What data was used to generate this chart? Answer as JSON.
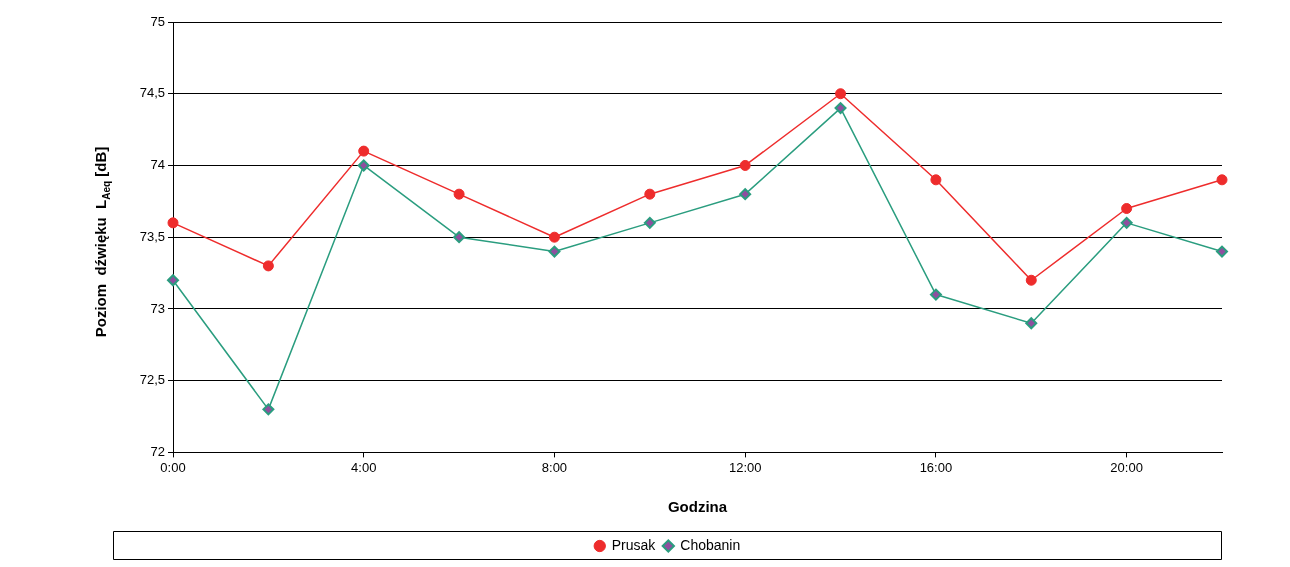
{
  "chart_data": {
    "type": "line",
    "xlabel": "Godzina",
    "ylabel": "Poziom  dźwięku  L$_{Aeq}$ [dB]",
    "x": [
      0,
      2,
      4,
      6,
      8,
      10,
      12,
      14,
      16,
      18,
      20,
      22
    ],
    "xlim": [
      0,
      22
    ],
    "xticks": [
      {
        "value": 0,
        "label": "0:00"
      },
      {
        "value": 4,
        "label": "4:00"
      },
      {
        "value": 8,
        "label": "8:00"
      },
      {
        "value": 12,
        "label": "12:00"
      },
      {
        "value": 16,
        "label": "16:00"
      },
      {
        "value": 20,
        "label": "20:00"
      }
    ],
    "ylim": [
      72,
      75
    ],
    "yticks": [
      72,
      {
        "value": 72.5,
        "label": "72,5"
      },
      73,
      {
        "value": 73.5,
        "label": "73,5"
      },
      74,
      {
        "value": 74.5,
        "label": "74,5"
      },
      75
    ],
    "grid": "y",
    "legend": "bottom",
    "series": [
      {
        "name": "Prusak",
        "color": "#ee2c2c",
        "marker": "circle",
        "values": [
          73.6,
          73.3,
          74.1,
          73.8,
          73.5,
          73.8,
          74.0,
          74.5,
          73.9,
          73.2,
          73.7,
          73.9
        ]
      },
      {
        "name": "Chobanin",
        "color": "#2a9d7f",
        "marker": "diamond",
        "values": [
          73.2,
          72.3,
          74.0,
          73.5,
          73.4,
          73.6,
          73.8,
          74.4,
          73.1,
          72.9,
          73.6,
          73.4
        ]
      }
    ]
  }
}
